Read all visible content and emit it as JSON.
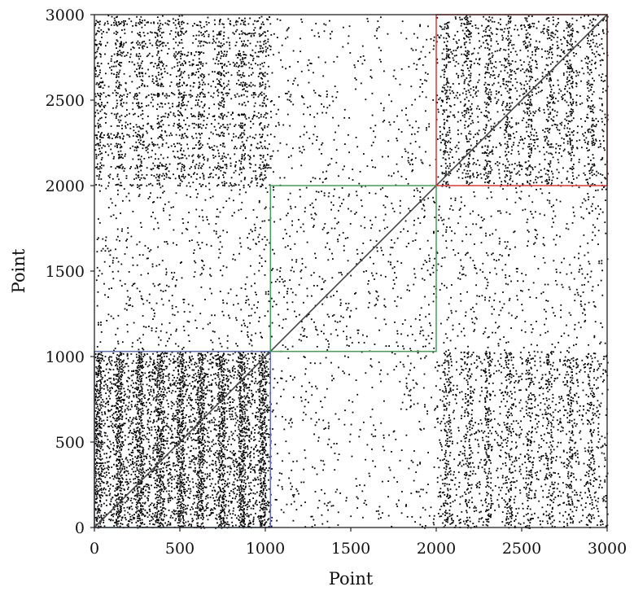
{
  "chart_data": {
    "type": "scatter",
    "title": "",
    "xlabel": "Point",
    "ylabel": "Point",
    "xlim": [
      0,
      3000
    ],
    "ylim": [
      0,
      3000
    ],
    "xticks": [
      0,
      500,
      1000,
      1500,
      2000,
      2500,
      3000
    ],
    "yticks": [
      0,
      500,
      1000,
      1500,
      2000,
      2500,
      3000
    ],
    "x_tick_labels": [
      "0",
      "500",
      "1000",
      "1500",
      "2000",
      "2500",
      "3000"
    ],
    "y_tick_labels": [
      "0",
      "500",
      "1000",
      "1500",
      "2000",
      "2500",
      "3000"
    ],
    "grid": false,
    "diagonal": {
      "from": [
        0,
        0
      ],
      "to": [
        3000,
        3000
      ],
      "color": "#444444"
    },
    "regions": [
      {
        "x": [
          0,
          1030
        ],
        "y": [
          0,
          1030
        ],
        "color": "#5b6fb0"
      },
      {
        "x": [
          1030,
          2000
        ],
        "y": [
          1030,
          2000
        ],
        "color": "#4a9a5a"
      },
      {
        "x": [
          2000,
          3000
        ],
        "y": [
          2000,
          3000
        ],
        "color": "#d23a3a"
      }
    ],
    "point_density": [
      {
        "x": [
          0,
          1030
        ],
        "y": [
          0,
          1030
        ],
        "level": "very high"
      },
      {
        "x": [
          0,
          1030
        ],
        "y": [
          2000,
          3000
        ],
        "level": "high"
      },
      {
        "x": [
          2000,
          3000
        ],
        "y": [
          0,
          1030
        ],
        "level": "high"
      },
      {
        "x": [
          2000,
          3000
        ],
        "y": [
          2000,
          3000
        ],
        "level": "high"
      },
      {
        "x": [
          1030,
          2000
        ],
        "y": [
          1030,
          2000
        ],
        "level": "low"
      },
      {
        "x": [
          0,
          1030
        ],
        "y": [
          1030,
          2000
        ],
        "level": "low"
      },
      {
        "x": [
          2000,
          3000
        ],
        "y": [
          1030,
          2000
        ],
        "level": "low"
      },
      {
        "x": [
          1030,
          2000
        ],
        "y": [
          0,
          1030
        ],
        "level": "sparse"
      },
      {
        "x": [
          1030,
          2000
        ],
        "y": [
          2000,
          3000
        ],
        "level": "sparse"
      }
    ],
    "marker_color": "#000000"
  }
}
